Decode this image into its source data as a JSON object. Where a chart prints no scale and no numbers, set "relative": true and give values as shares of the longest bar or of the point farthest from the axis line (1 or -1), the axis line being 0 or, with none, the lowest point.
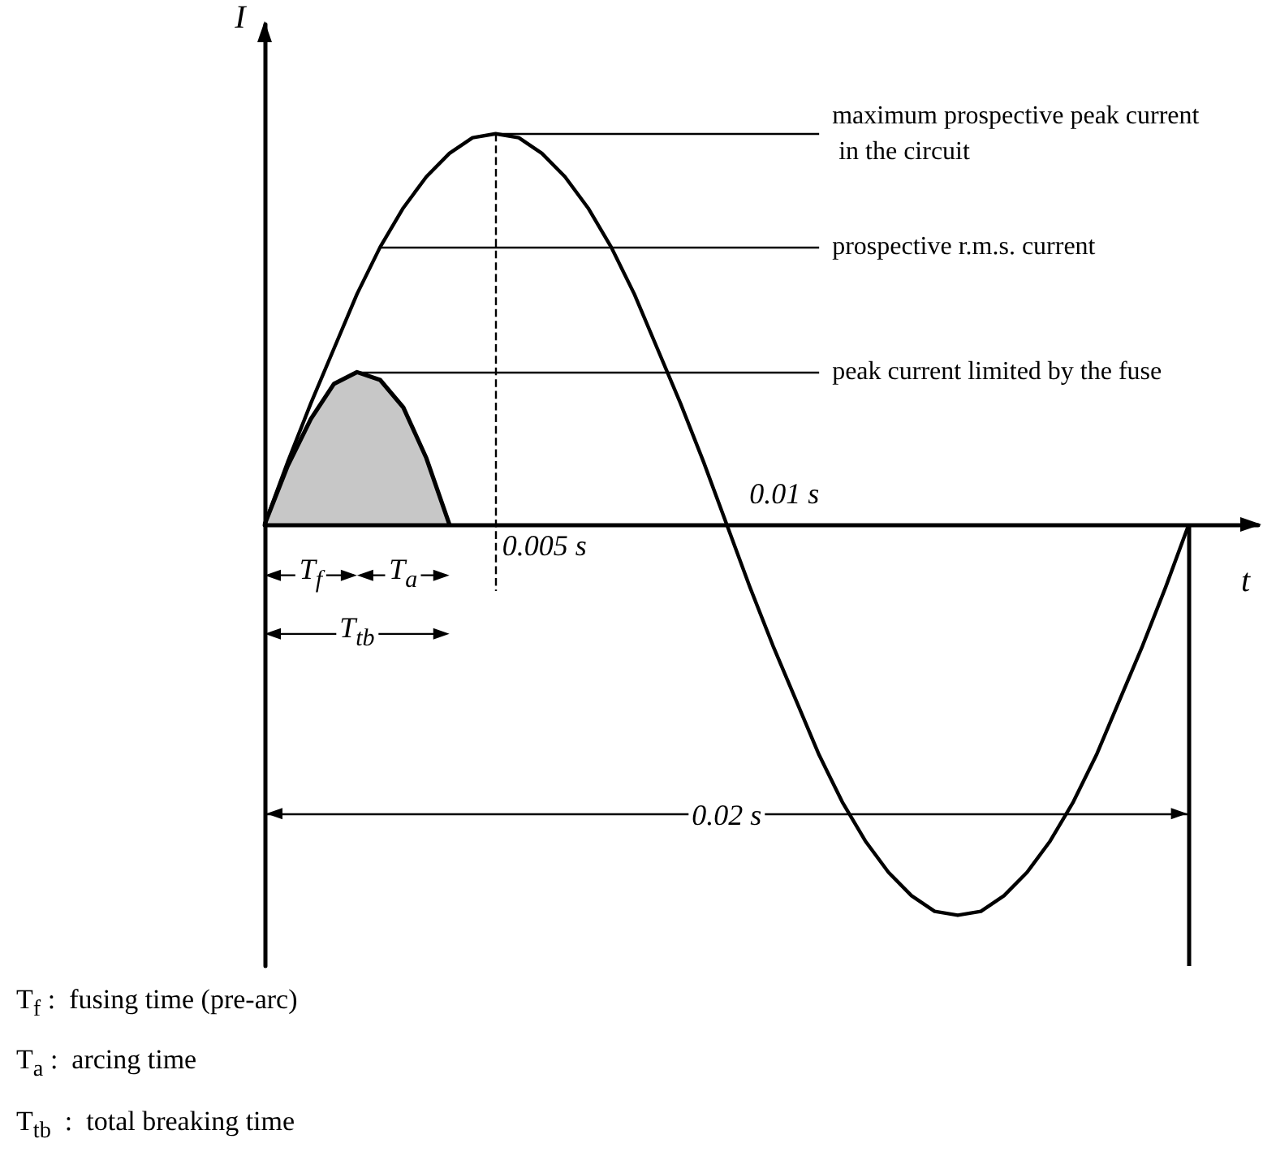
{
  "chart_data": {
    "type": "line",
    "relative": true,
    "xlabel": "t",
    "ylabel": "I",
    "grid": false,
    "categories": [
      null,
      null,
      null,
      null,
      null,
      null,
      null,
      null,
      null,
      null,
      null,
      null,
      null,
      null,
      null,
      null,
      null,
      null,
      null,
      null,
      null,
      null,
      null,
      null,
      null,
      null,
      null,
      null,
      null,
      null,
      null,
      null,
      null,
      null,
      null,
      null,
      null,
      null,
      null,
      null,
      null,
      null,
      null,
      null
    ],
    "series": [
      {
        "color": "#000000",
        "values": [
          0,
          0.16,
          0.31,
          0.45,
          0.59,
          0.71,
          0.81,
          0.89,
          0.95,
          0.99,
          1,
          0.99,
          0.95,
          0.89,
          0.81,
          0.71,
          0.59,
          0.45,
          0.31,
          0.16,
          0,
          -0.16,
          -0.31,
          -0.45,
          -0.59,
          -0.71,
          -0.81,
          -0.89,
          -0.95,
          -0.99,
          -1,
          -0.99,
          -0.95,
          -0.89,
          -0.81,
          -0.71,
          -0.59,
          -0.45,
          -0.31,
          -0.16,
          0,
          null,
          null,
          null
        ]
      },
      {
        "type": "area",
        "color": "#000000",
        "values": [
          0,
          0.15,
          0.27,
          0.36,
          0.39,
          0.37,
          0.3,
          0.17,
          0,
          null,
          null,
          null,
          null,
          null,
          null,
          null,
          null,
          null,
          null,
          null,
          null,
          null,
          null,
          null,
          null,
          null,
          null,
          null,
          null,
          null,
          null,
          null,
          null,
          null,
          null,
          null,
          null,
          null,
          null,
          null,
          null,
          null,
          null,
          null
        ]
      }
    ],
    "ref_lines": [
      {
        "axis": "y",
        "value": -0.74,
        "label": "0.02 s"
      }
    ],
    "annotations": [
      "maximum prospective peak current in the circuit",
      "prospective r.m.s. current",
      "peak current limited by the fuse",
      "0.005 s",
      "0.01 s",
      "T$_{f}$",
      "T$_{a}$",
      "T$_{tb}$",
      "T$_{f}$ :  fusing time (pre-arc)",
      "T$_{a}$ :  arcing time",
      "T$_{tb}$  :  total breaking time"
    ]
  }
}
